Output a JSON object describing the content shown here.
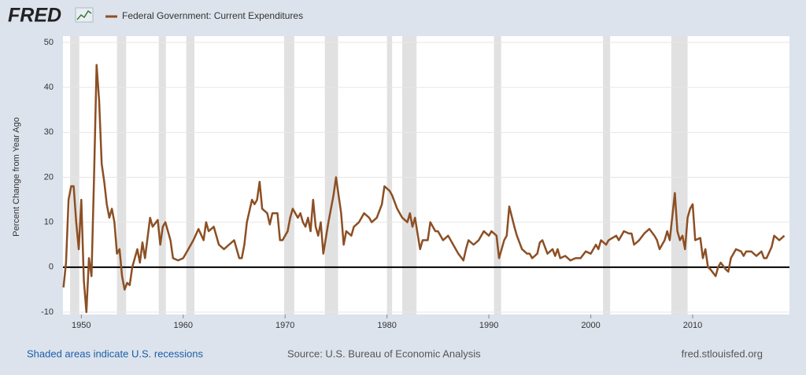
{
  "header": {
    "logo": "FRED"
  },
  "chart_data": {
    "type": "line",
    "y_label": "Percent Change from Year Ago",
    "x": [
      1948.25,
      1948.5,
      1948.75,
      1949,
      1949.25,
      1949.5,
      1949.75,
      1950,
      1950.25,
      1950.5,
      1950.75,
      1951,
      1951.25,
      1951.5,
      1951.75,
      1952,
      1952.25,
      1952.5,
      1952.75,
      1953,
      1953.25,
      1953.5,
      1953.75,
      1954,
      1954.25,
      1954.5,
      1954.75,
      1955,
      1955.5,
      1955.75,
      1956,
      1956.25,
      1956.75,
      1957,
      1957.5,
      1957.75,
      1958,
      1958.25,
      1958.5,
      1958.75,
      1959,
      1959.5,
      1960,
      1960.5,
      1961,
      1961.5,
      1962,
      1962.25,
      1962.5,
      1963,
      1963.5,
      1964,
      1964.5,
      1965,
      1965.5,
      1965.75,
      1966,
      1966.25,
      1966.75,
      1967,
      1967.25,
      1967.5,
      1967.75,
      1968.25,
      1968.5,
      1968.75,
      1969.25,
      1969.5,
      1969.75,
      1970.25,
      1970.5,
      1970.75,
      1971.25,
      1971.5,
      1971.75,
      1972,
      1972.25,
      1972.5,
      1972.75,
      1973,
      1973.25,
      1973.5,
      1973.75,
      1974.25,
      1974.75,
      1975,
      1975.25,
      1975.5,
      1975.75,
      1976,
      1976.5,
      1976.75,
      1977.25,
      1977.75,
      1978.25,
      1978.5,
      1979,
      1979.5,
      1979.75,
      1980.25,
      1980.5,
      1981,
      1981.5,
      1982,
      1982.25,
      1982.5,
      1982.75,
      1983.25,
      1983.5,
      1984,
      1984.25,
      1984.75,
      1985,
      1985.5,
      1986,
      1986.5,
      1987,
      1987.5,
      1987.75,
      1988,
      1988.5,
      1989,
      1989.5,
      1990,
      1990.25,
      1990.75,
      1991,
      1991.5,
      1991.75,
      1992,
      1992.5,
      1992.75,
      1993.25,
      1993.75,
      1994,
      1994.25,
      1994.75,
      1995,
      1995.25,
      1995.75,
      1996.25,
      1996.5,
      1996.75,
      1997,
      1997.5,
      1998,
      1998.5,
      1999,
      1999.5,
      2000,
      2000.5,
      2000.75,
      2001,
      2001.5,
      2001.75,
      2002.5,
      2002.75,
      2003.25,
      2003.75,
      2004,
      2004.25,
      2004.75,
      2005.25,
      2005.75,
      2006.25,
      2006.5,
      2006.75,
      2007.25,
      2007.5,
      2007.75,
      2008.25,
      2008.5,
      2008.75,
      2009,
      2009.25,
      2009.5,
      2009.75,
      2010,
      2010.25,
      2010.75,
      2011,
      2011.25,
      2011.5,
      2011.75,
      2012.25,
      2012.5,
      2012.75,
      2013.25,
      2013.5,
      2013.75,
      2014,
      2014.25,
      2014.75,
      2015,
      2015.25,
      2015.75,
      2016,
      2016.25,
      2016.75,
      2017,
      2017.25,
      2017.75,
      2018,
      2018.5,
      2018.75,
      2019
    ],
    "series": [
      {
        "name": "Federal Government: Current Expenditures",
        "color": "#8c4f24",
        "values": [
          -4.5,
          1,
          15,
          18,
          18,
          10,
          4,
          15,
          -3,
          -10,
          2,
          -2,
          20,
          45,
          37,
          23,
          19,
          14,
          11,
          13,
          10,
          3,
          4,
          -2,
          -5,
          -3.5,
          -4,
          0,
          4,
          1,
          5.5,
          2,
          11,
          9,
          10.5,
          5,
          9,
          10,
          8,
          6,
          2,
          1.5,
          2,
          4,
          6,
          8.5,
          6,
          10,
          8,
          9,
          5,
          4,
          5,
          6,
          2,
          2,
          5,
          10,
          15,
          14,
          15,
          19,
          13,
          12,
          9.5,
          12,
          12,
          6,
          6,
          8,
          11,
          13,
          11,
          12,
          10,
          9,
          11,
          8,
          15,
          9,
          7,
          10,
          3,
          10,
          16,
          20,
          16,
          12,
          5,
          8,
          7,
          9,
          10,
          12,
          11,
          10,
          11,
          14,
          18,
          17,
          16,
          13,
          11,
          10,
          12,
          9,
          11,
          4,
          6,
          6,
          10,
          8,
          8,
          6,
          7,
          5,
          3,
          1.5,
          4,
          6,
          5,
          6,
          8,
          7,
          8,
          7,
          2,
          6,
          7,
          13.5,
          9,
          7,
          4,
          3,
          3,
          2,
          3,
          5.5,
          6,
          3,
          4,
          2.5,
          4,
          2,
          2.5,
          1.5,
          2,
          2,
          3.5,
          3,
          5,
          4,
          6,
          5,
          6,
          7,
          6,
          8,
          7.5,
          7.5,
          5,
          6,
          7.5,
          8.5,
          7,
          6,
          4,
          6,
          8,
          6,
          16.5,
          8,
          6,
          7,
          4,
          11,
          13,
          14,
          6,
          6.5,
          2,
          4,
          0,
          -0.5,
          -2,
          0,
          1,
          -0.5,
          -1,
          2,
          3,
          4,
          3.5,
          2.5,
          3.5,
          3.5,
          3,
          2.5,
          3.5,
          2,
          2,
          4.5,
          7,
          6,
          6.5,
          7
        ]
      }
    ],
    "recessions": [
      [
        1948.9,
        1949.8
      ],
      [
        1953.5,
        1954.4
      ],
      [
        1957.6,
        1958.3
      ],
      [
        1960.3,
        1961.1
      ],
      [
        1969.9,
        1970.9
      ],
      [
        1973.9,
        1975.2
      ],
      [
        1980,
        1980.5
      ],
      [
        1981.5,
        1982.9
      ],
      [
        1990.5,
        1991.2
      ],
      [
        2001.2,
        2001.9
      ],
      [
        2007.9,
        2009.5
      ]
    ],
    "recession_color": "#e1e1e1",
    "xlim": [
      1948.2,
      2019.5
    ],
    "xticks": [
      1950,
      1960,
      1970,
      1980,
      1990,
      2000,
      2010
    ],
    "ylim": [
      -10,
      50
    ],
    "yticks": [
      -10,
      0,
      10,
      20,
      30,
      40,
      50
    ],
    "grid": true
  },
  "footer": {
    "recession_note": "Shaded areas indicate U.S. recessions",
    "source": "Source: U.S. Bureau of Economic Analysis",
    "site": "fred.stlouisfed.org"
  }
}
